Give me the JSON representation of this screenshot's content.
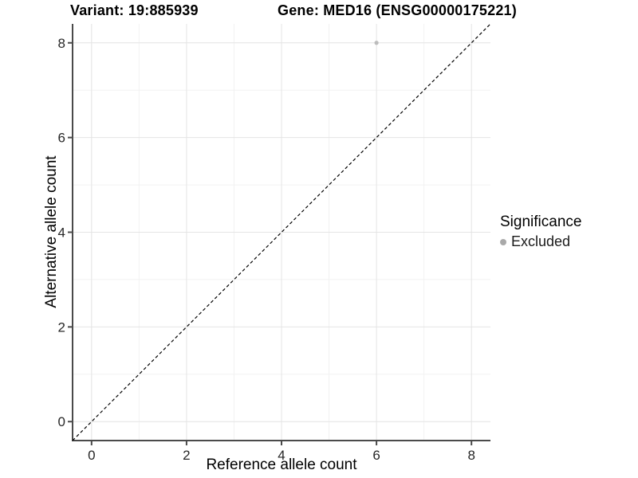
{
  "title": {
    "variant": "Variant: 19:885939",
    "gene": "Gene: MED16 (ENSG00000175221)"
  },
  "axes": {
    "x_label": "Reference allele count",
    "y_label": "Alternative allele count"
  },
  "legend": {
    "title": "Significance",
    "items": [
      {
        "label": "Excluded",
        "color": "#a9a9a9"
      }
    ]
  },
  "chart_data": {
    "type": "scatter",
    "title": "Variant: 19:885939    Gene: MED16 (ENSG00000175221)",
    "xlabel": "Reference allele count",
    "ylabel": "Alternative allele count",
    "xlim": [
      -0.4,
      8.4
    ],
    "ylim": [
      -0.4,
      8.4
    ],
    "x_ticks": [
      0,
      2,
      4,
      6,
      8
    ],
    "y_ticks": [
      0,
      2,
      4,
      6,
      8
    ],
    "x_minor_ticks": [
      1,
      3,
      5,
      7
    ],
    "y_minor_ticks": [
      1,
      3,
      5,
      7
    ],
    "grid": true,
    "legend_position": "right",
    "series": [
      {
        "name": "Excluded",
        "points": [
          {
            "x": 6,
            "y": 8
          }
        ],
        "color": "#bcbcbc"
      }
    ],
    "reference_line": {
      "type": "identity",
      "slope": 1,
      "intercept": 0,
      "style": "dashed",
      "color": "#000000"
    },
    "colors": {
      "grid_major": "#e4e4e4",
      "grid_minor": "#f2f2f2",
      "axis_line": "#4a4a4a",
      "tick_mark": "#4a4a4a",
      "tick_label": "#262626",
      "legend_key": "#a9a9a9"
    }
  }
}
